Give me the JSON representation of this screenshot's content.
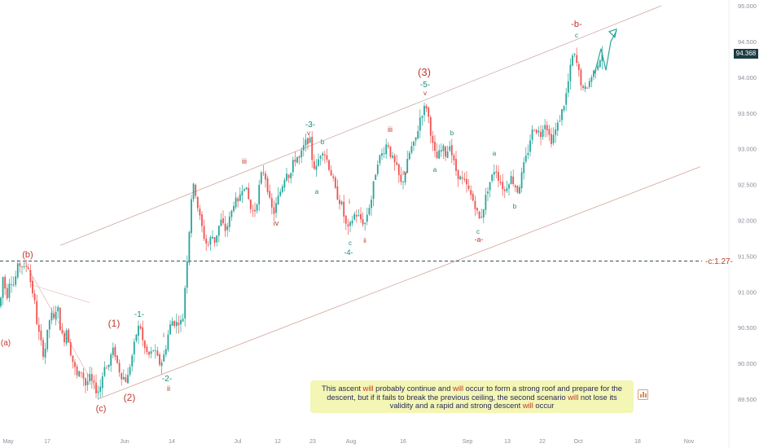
{
  "chart_data": {
    "type": "candlestick",
    "x_ticks": [
      "May",
      "17",
      "Jun",
      "14",
      "Jul",
      "12",
      "23",
      "Aug",
      "16",
      "Sep",
      "13",
      "22",
      "Oct",
      "18",
      "Nov"
    ],
    "y_ticks": [
      "95.000",
      "94.500",
      "94.000",
      "93.500",
      "93.000",
      "92.500",
      "92.000",
      "91.500",
      "91.000",
      "90.500",
      "90.000",
      "89.500"
    ],
    "ylim": [
      89.2,
      95.1
    ],
    "last_price": "94.368",
    "fib_level": {
      "label": "-c:1.27-",
      "value": 91.43
    },
    "price_path": [
      [
        0,
        90.8
      ],
      [
        4,
        91.25
      ],
      [
        8,
        90.9
      ],
      [
        12,
        91.2
      ],
      [
        17,
        91.1
      ],
      [
        22,
        91.35
      ],
      [
        26,
        91.4
      ],
      [
        30,
        91.3
      ],
      [
        34,
        91.42
      ],
      [
        38,
        91.1
      ],
      [
        42,
        90.9
      ],
      [
        46,
        90.5
      ],
      [
        50,
        90.3
      ],
      [
        54,
        90.1
      ],
      [
        58,
        90.4
      ],
      [
        62,
        90.7
      ],
      [
        66,
        90.6
      ],
      [
        70,
        90.85
      ],
      [
        74,
        90.5
      ],
      [
        78,
        90.3
      ],
      [
        82,
        90.5
      ],
      [
        86,
        90.2
      ],
      [
        90,
        90.0
      ],
      [
        95,
        89.8
      ],
      [
        100,
        89.9
      ],
      [
        105,
        89.7
      ],
      [
        110,
        89.8
      ],
      [
        115,
        89.68
      ],
      [
        120,
        89.6
      ],
      [
        124,
        89.7
      ],
      [
        128,
        90.0
      ],
      [
        132,
        89.9
      ],
      [
        136,
        90.1
      ],
      [
        140,
        90.2
      ],
      [
        144,
        90.0
      ],
      [
        148,
        89.85
      ],
      [
        152,
        89.8
      ],
      [
        156,
        89.75
      ],
      [
        160,
        90.0
      ],
      [
        164,
        90.2
      ],
      [
        168,
        90.45
      ],
      [
        172,
        90.55
      ],
      [
        176,
        90.25
      ],
      [
        180,
        90.15
      ],
      [
        184,
        90.1
      ],
      [
        188,
        90.2
      ],
      [
        192,
        90.1
      ],
      [
        196,
        90.0
      ],
      [
        200,
        90.05
      ],
      [
        204,
        90.25
      ],
      [
        208,
        90.5
      ],
      [
        212,
        90.6
      ],
      [
        216,
        90.55
      ],
      [
        220,
        90.6
      ],
      [
        224,
        90.55
      ],
      [
        228,
        91.2
      ],
      [
        232,
        91.8
      ],
      [
        236,
        92.5
      ],
      [
        240,
        92.4
      ],
      [
        244,
        92.1
      ],
      [
        248,
        91.9
      ],
      [
        252,
        91.7
      ],
      [
        256,
        91.65
      ],
      [
        260,
        91.8
      ],
      [
        264,
        91.7
      ],
      [
        268,
        91.9
      ],
      [
        272,
        92.0
      ],
      [
        276,
        91.85
      ],
      [
        280,
        91.95
      ],
      [
        284,
        92.1
      ],
      [
        288,
        92.3
      ],
      [
        292,
        92.2
      ],
      [
        296,
        92.45
      ],
      [
        300,
        92.5
      ],
      [
        304,
        92.35
      ],
      [
        308,
        92.15
      ],
      [
        312,
        92.1
      ],
      [
        316,
        92.3
      ],
      [
        320,
        92.6
      ],
      [
        324,
        92.7
      ],
      [
        328,
        92.5
      ],
      [
        332,
        92.2
      ],
      [
        336,
        92.1
      ],
      [
        340,
        92.25
      ],
      [
        344,
        92.4
      ],
      [
        348,
        92.55
      ],
      [
        352,
        92.7
      ],
      [
        356,
        92.6
      ],
      [
        360,
        92.8
      ],
      [
        364,
        92.9
      ],
      [
        368,
        92.85
      ],
      [
        372,
        93.0
      ],
      [
        376,
        93.1
      ],
      [
        380,
        93.15
      ],
      [
        384,
        92.8
      ],
      [
        388,
        92.7
      ],
      [
        392,
        92.9
      ],
      [
        396,
        93.0
      ],
      [
        400,
        92.9
      ],
      [
        404,
        92.75
      ],
      [
        408,
        92.6
      ],
      [
        412,
        92.4
      ],
      [
        416,
        92.3
      ],
      [
        420,
        92.2
      ],
      [
        424,
        91.95
      ],
      [
        428,
        91.85
      ],
      [
        432,
        92.0
      ],
      [
        436,
        92.1
      ],
      [
        440,
        92.05
      ],
      [
        444,
        92.0
      ],
      [
        448,
        91.95
      ],
      [
        452,
        92.15
      ],
      [
        456,
        92.3
      ],
      [
        460,
        92.6
      ],
      [
        464,
        92.85
      ],
      [
        468,
        92.9
      ],
      [
        472,
        93.0
      ],
      [
        476,
        93.1
      ],
      [
        480,
        92.9
      ],
      [
        484,
        92.8
      ],
      [
        488,
        92.7
      ],
      [
        492,
        92.5
      ],
      [
        496,
        92.6
      ],
      [
        500,
        92.8
      ],
      [
        504,
        93.0
      ],
      [
        508,
        93.05
      ],
      [
        512,
        93.2
      ],
      [
        516,
        93.45
      ],
      [
        520,
        93.55
      ],
      [
        524,
        93.6
      ],
      [
        528,
        93.3
      ],
      [
        532,
        93.0
      ],
      [
        536,
        92.85
      ],
      [
        540,
        92.95
      ],
      [
        544,
        93.0
      ],
      [
        548,
        92.9
      ],
      [
        552,
        93.1
      ],
      [
        556,
        92.85
      ],
      [
        560,
        92.7
      ],
      [
        564,
        92.6
      ],
      [
        568,
        92.55
      ],
      [
        572,
        92.5
      ],
      [
        576,
        92.4
      ],
      [
        580,
        92.3
      ],
      [
        584,
        92.2
      ],
      [
        588,
        92.0
      ],
      [
        592,
        92.1
      ],
      [
        596,
        92.3
      ],
      [
        600,
        92.5
      ],
      [
        604,
        92.6
      ],
      [
        608,
        92.75
      ],
      [
        612,
        92.6
      ],
      [
        616,
        92.5
      ],
      [
        620,
        92.4
      ],
      [
        624,
        92.55
      ],
      [
        628,
        92.6
      ],
      [
        632,
        92.5
      ],
      [
        636,
        92.4
      ],
      [
        640,
        92.6
      ],
      [
        644,
        92.8
      ],
      [
        648,
        92.95
      ],
      [
        652,
        93.2
      ],
      [
        656,
        93.3
      ],
      [
        660,
        93.25
      ],
      [
        664,
        93.2
      ],
      [
        668,
        93.4
      ],
      [
        672,
        93.3
      ],
      [
        676,
        93.1
      ],
      [
        680,
        93.2
      ],
      [
        684,
        93.3
      ],
      [
        688,
        93.45
      ],
      [
        692,
        93.6
      ],
      [
        696,
        93.8
      ],
      [
        700,
        94.1
      ],
      [
        704,
        94.35
      ],
      [
        708,
        94.2
      ],
      [
        712,
        94.0
      ],
      [
        716,
        93.8
      ],
      [
        720,
        93.85
      ],
      [
        724,
        93.95
      ],
      [
        728,
        94.05
      ],
      [
        732,
        94.15
      ],
      [
        736,
        94.25
      ],
      [
        740,
        94.37
      ]
    ],
    "projection": [
      [
        730,
        94.05
      ],
      [
        738,
        94.4
      ],
      [
        744,
        94.1
      ],
      [
        750,
        94.5
      ],
      [
        757,
        94.65
      ]
    ],
    "channel_upper": [
      [
        74,
        91.65
      ],
      [
        812,
        95.0
      ]
    ],
    "channel_lower": [
      [
        120,
        89.5
      ],
      [
        860,
        92.75
      ]
    ],
    "wave_labels": [
      {
        "text": "(a)",
        "color": "red"
      },
      {
        "text": "(b)",
        "color": "red"
      },
      {
        "text": "(c)",
        "color": "red"
      },
      {
        "text": "(1)",
        "color": "red"
      },
      {
        "text": "-1-",
        "color": "teal"
      },
      {
        "text": "(2)",
        "color": "red"
      },
      {
        "text": "-2-",
        "color": "teal"
      },
      {
        "text": "ii",
        "color": "red"
      },
      {
        "text": "i",
        "color": "red"
      },
      {
        "text": "iii",
        "color": "red"
      },
      {
        "text": "iv",
        "color": "red"
      },
      {
        "text": "-3-",
        "color": "teal"
      },
      {
        "text": "v",
        "color": "red"
      },
      {
        "text": "b",
        "color": "teal"
      },
      {
        "text": "a",
        "color": "teal"
      },
      {
        "text": "i",
        "color": "red"
      },
      {
        "text": "c",
        "color": "teal"
      },
      {
        "text": "-4-",
        "color": "teal"
      },
      {
        "text": "ii",
        "color": "red"
      },
      {
        "text": "iii",
        "color": "red"
      },
      {
        "text": "iv",
        "color": "red"
      },
      {
        "text": "(3)",
        "color": "red"
      },
      {
        "text": "-5-",
        "color": "teal"
      },
      {
        "text": "v",
        "color": "red"
      },
      {
        "text": "b",
        "color": "teal"
      },
      {
        "text": "a",
        "color": "teal"
      },
      {
        "text": "c",
        "color": "teal"
      },
      {
        "text": "-a-",
        "color": "red"
      },
      {
        "text": "a",
        "color": "teal"
      },
      {
        "text": "b",
        "color": "teal"
      },
      {
        "text": "-b-",
        "color": "red"
      },
      {
        "text": "c",
        "color": "teal"
      }
    ]
  },
  "annotation": {
    "part1": "This ascent ",
    "w1": "will",
    "part2": " probably continue and ",
    "w2": "will",
    "part3": " occur to form a strong roof and prepare for the descent, but if it fails to break the previous ceiling, the second scenario ",
    "w3": "will",
    "part4": " not lose its validity and a rapid and strong descent ",
    "w4": "will",
    "part5": " occur"
  },
  "colors": {
    "up": "#26a69a",
    "down": "#ef5350",
    "channel": "#c9a8a0",
    "fib": "#1d3b45",
    "projection": "#26a69a",
    "wave_red": "#c0392b",
    "wave_teal": "#1b8a7a"
  },
  "icon": "bar-chart-icon"
}
